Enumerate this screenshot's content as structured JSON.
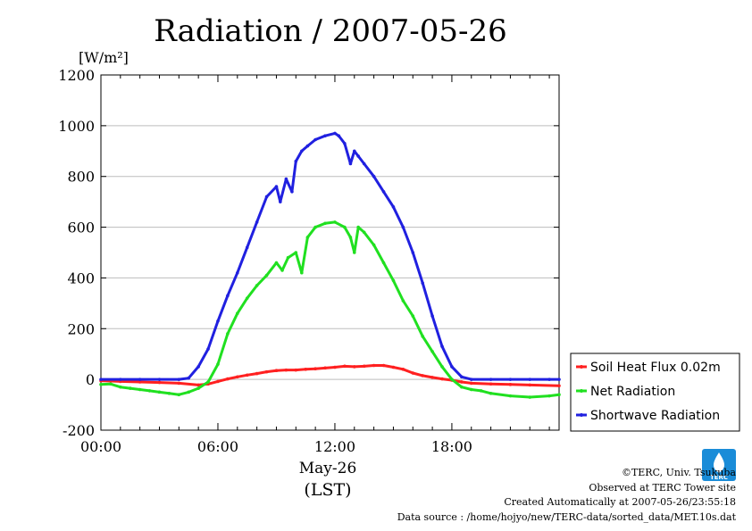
{
  "colors": {
    "soil": "#ff2020",
    "net": "#20e020",
    "short": "#2020e0",
    "grid": "#bdbdbd",
    "logo": "#1a8cd8"
  },
  "credits": {
    "copyright": "©TERC, Univ. Tsukuba",
    "observed": "Observed at TERC Tower site",
    "created": "Created Automatically at 2007-05-26/23:55:18",
    "source": "Data source : /home/hojyo/new/TERC-data/sorted_data/MET.10s.dat"
  },
  "logo": {
    "text": "TERC",
    "icon": "terc-logo-icon"
  },
  "chart_data": {
    "type": "line",
    "title": "Radiation / 2007-05-26",
    "ylabel": "[W/m²]",
    "xlabel": "May-26",
    "xlabel_sub": "(LST)",
    "xlim": [
      0,
      23.5
    ],
    "ylim": [
      -200,
      1200
    ],
    "yticks": [
      -200,
      0,
      200,
      400,
      600,
      800,
      1000,
      1200
    ],
    "xticks": [
      0,
      6,
      12,
      18
    ],
    "xtick_labels": [
      "00:00",
      "06:00",
      "12:00",
      "18:00"
    ],
    "grid": true,
    "legend_position": "right",
    "series": [
      {
        "name": "Soil Heat Flux 0.02m",
        "color": "#ff2020",
        "x": [
          0,
          1,
          2,
          3,
          4,
          5,
          5.5,
          6,
          6.5,
          7,
          7.5,
          8,
          8.5,
          9,
          9.5,
          10,
          10.5,
          11,
          11.5,
          12,
          12.5,
          13,
          13.5,
          14,
          14.5,
          15,
          15.5,
          16,
          16.5,
          17,
          17.5,
          18,
          18.5,
          19,
          20,
          21,
          22,
          23.5
        ],
        "y": [
          -5,
          -8,
          -10,
          -12,
          -15,
          -22,
          -18,
          -8,
          2,
          10,
          17,
          23,
          30,
          35,
          37,
          37,
          40,
          42,
          45,
          48,
          52,
          50,
          52,
          55,
          55,
          48,
          40,
          25,
          15,
          8,
          2,
          -3,
          -10,
          -15,
          -18,
          -20,
          -22,
          -25
        ]
      },
      {
        "name": "Net Radiation",
        "color": "#20e020",
        "x": [
          0,
          0.5,
          1,
          1.5,
          2,
          2.5,
          3,
          3.5,
          4,
          4.5,
          5,
          5.5,
          6,
          6.5,
          7,
          7.5,
          8,
          8.5,
          9,
          9.3,
          9.6,
          10,
          10.3,
          10.6,
          11,
          11.5,
          12,
          12.5,
          12.8,
          13,
          13.2,
          13.5,
          14,
          14.5,
          15,
          15.5,
          16,
          16.5,
          17,
          17.5,
          18,
          18.5,
          19,
          19.5,
          20,
          21,
          22,
          23,
          23.5
        ],
        "y": [
          -20,
          -18,
          -30,
          -35,
          -40,
          -45,
          -50,
          -55,
          -60,
          -50,
          -35,
          -10,
          60,
          180,
          260,
          320,
          370,
          410,
          460,
          430,
          480,
          500,
          420,
          560,
          600,
          615,
          620,
          600,
          560,
          500,
          600,
          580,
          530,
          460,
          390,
          310,
          250,
          170,
          110,
          50,
          0,
          -30,
          -40,
          -45,
          -55,
          -65,
          -70,
          -65,
          -60
        ]
      },
      {
        "name": "Shortwave Radiation",
        "color": "#2020e0",
        "x": [
          0,
          1,
          2,
          3,
          4,
          4.5,
          5,
          5.5,
          6,
          6.5,
          7,
          7.5,
          8,
          8.5,
          9,
          9.2,
          9.5,
          9.8,
          10,
          10.3,
          10.6,
          11,
          11.5,
          12,
          12.2,
          12.5,
          12.8,
          13,
          13.2,
          13.5,
          14,
          14.5,
          15,
          15.5,
          16,
          16.5,
          17,
          17.5,
          18,
          18.5,
          19,
          20,
          21,
          22,
          23,
          23.5
        ],
        "y": [
          0,
          0,
          0,
          0,
          0,
          5,
          50,
          120,
          230,
          330,
          420,
          520,
          620,
          720,
          760,
          700,
          790,
          740,
          860,
          900,
          920,
          945,
          960,
          970,
          960,
          930,
          850,
          900,
          880,
          850,
          800,
          740,
          680,
          600,
          500,
          380,
          250,
          130,
          50,
          10,
          0,
          0,
          0,
          0,
          0,
          0
        ]
      }
    ]
  }
}
